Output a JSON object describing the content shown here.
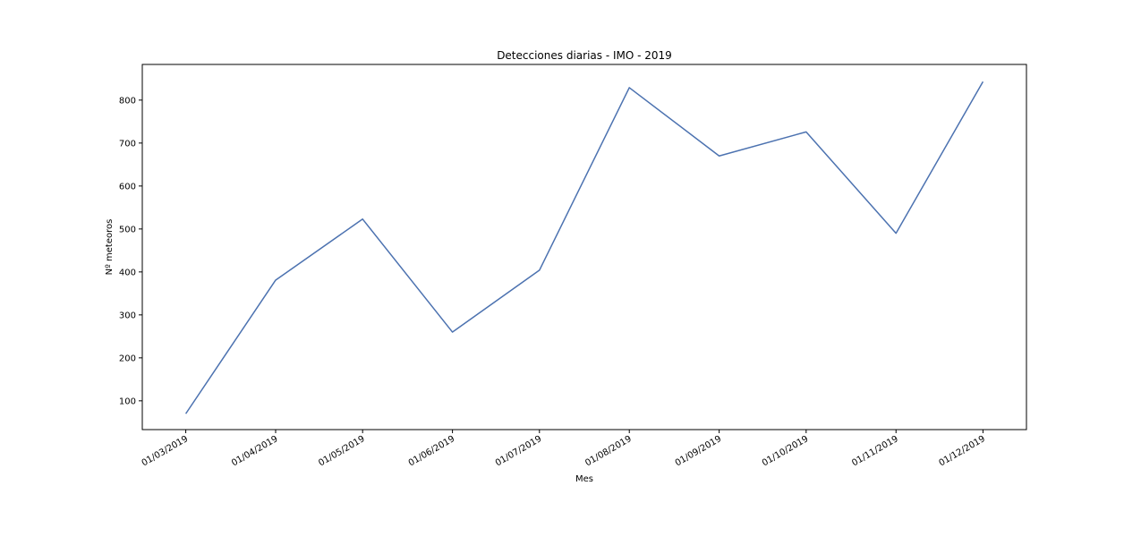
{
  "chart_data": {
    "type": "line",
    "title": "Detecciones diarias - IMO - 2019",
    "xlabel": "Mes",
    "ylabel": "Nº meteoros",
    "categories": [
      "01/03/2019",
      "01/04/2019",
      "01/05/2019",
      "01/06/2019",
      "01/07/2019",
      "01/08/2019",
      "01/09/2019",
      "01/10/2019",
      "01/11/2019",
      "01/12/2019"
    ],
    "x": [
      "2019-03-01",
      "2019-04-01",
      "2019-05-01",
      "2019-06-01",
      "2019-07-01",
      "2019-08-01",
      "2019-09-01",
      "2019-10-01",
      "2019-11-01",
      "2019-12-01"
    ],
    "series": [
      {
        "values": [
          70,
          381,
          523,
          260,
          404,
          829,
          670,
          726,
          490,
          843
        ]
      }
    ],
    "yticks": [
      100,
      200,
      300,
      400,
      500,
      600,
      700,
      800
    ],
    "ylim": [
      33,
      883
    ],
    "xlim": [
      "2019-02-14",
      "2019-12-16"
    ],
    "grid": false,
    "legend": "none",
    "colors": {
      "line": "#4c72b0",
      "axes": "#000000"
    }
  }
}
